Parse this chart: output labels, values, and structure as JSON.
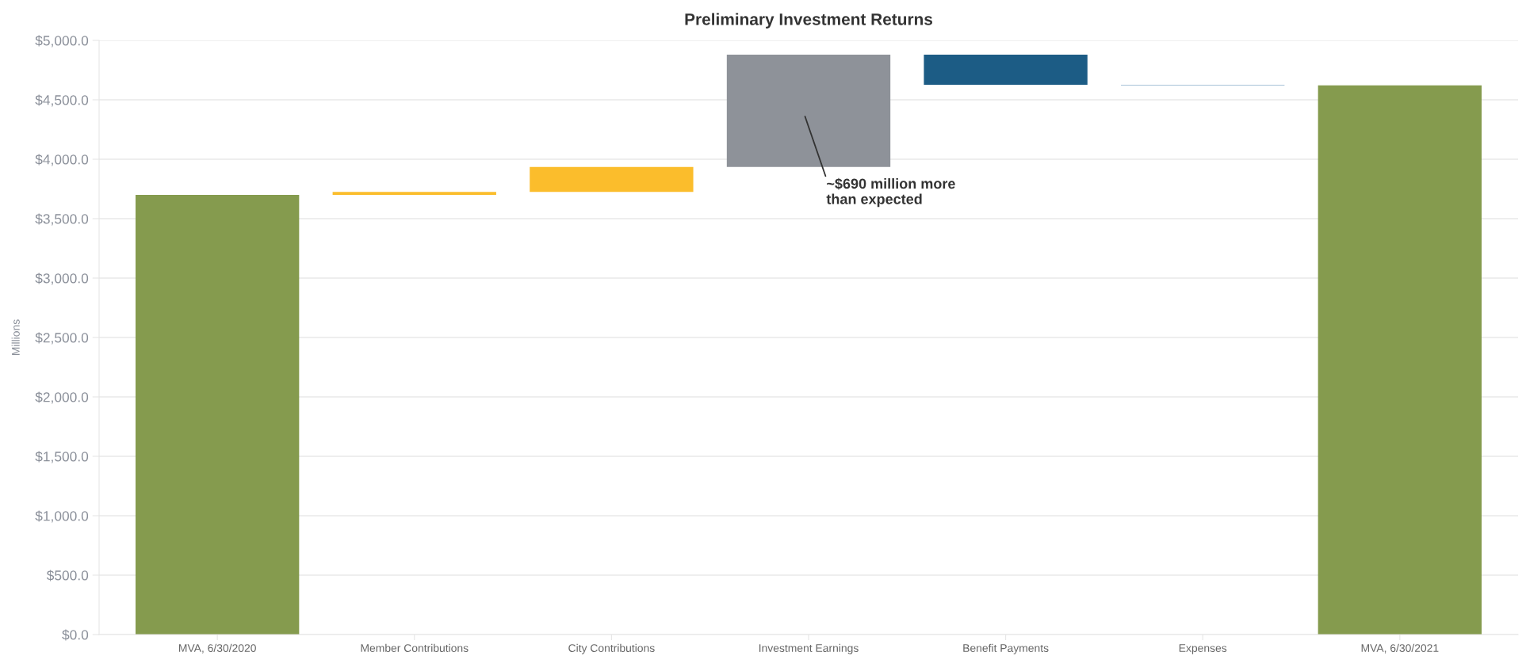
{
  "chart_data": {
    "type": "bar",
    "title": "Preliminary Investment Returns",
    "ylabel": "Millions",
    "categories": [
      "MVA, 6/30/2020",
      "Member Contributions",
      "City Contributions",
      "Investment Earnings",
      "Benefit Payments",
      "Expenses",
      "MVA, 6/30/2021"
    ],
    "values": [
      3700,
      25,
      210,
      945,
      -253,
      -5,
      4622
    ],
    "base": [
      0,
      3700,
      3725,
      3935,
      4880,
      4627,
      0
    ],
    "colors": [
      "#859b4e",
      "#fbbd2c",
      "#fbbd2c",
      "#8e9299",
      "#1c5c85",
      "#8aaecb",
      "#859b4e"
    ],
    "ylim": [
      0,
      5000
    ],
    "yticks": [
      {
        "value": 0,
        "label": "$0.0"
      },
      {
        "value": 500,
        "label": "$500.0"
      },
      {
        "value": 1000,
        "label": "$1,000.0"
      },
      {
        "value": 1500,
        "label": "$1,500.0"
      },
      {
        "value": 2000,
        "label": "$2,000.0"
      },
      {
        "value": 2500,
        "label": "$2,500.0"
      },
      {
        "value": 3000,
        "label": "$3,000.0"
      },
      {
        "value": 3500,
        "label": "$3,500.0"
      },
      {
        "value": 4000,
        "label": "$4,000.0"
      },
      {
        "value": 4500,
        "label": "$4,500.0"
      },
      {
        "value": 5000,
        "label": "$5,000.0"
      }
    ],
    "grid": "y",
    "annotations": [
      "~$690 million more\nthan expected"
    ]
  }
}
